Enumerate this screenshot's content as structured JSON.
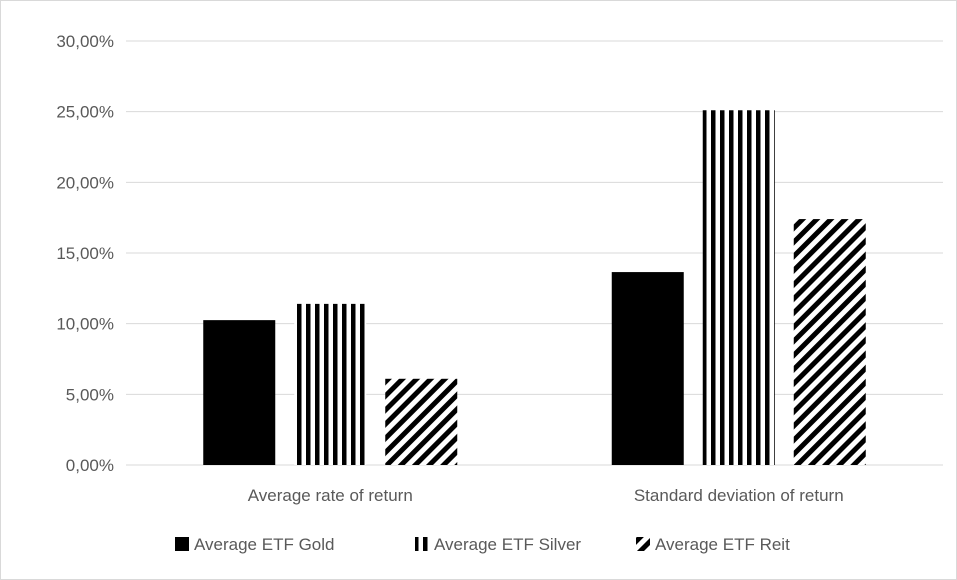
{
  "chart_data": {
    "type": "bar",
    "title": "",
    "xlabel": "",
    "ylabel": "",
    "categories": [
      "Average rate of return",
      "Standard deviation of return"
    ],
    "series": [
      {
        "name": "Average ETF Gold",
        "values": [
          10.25,
          13.65
        ],
        "pattern": "solid",
        "color": "#000000"
      },
      {
        "name": "Average ETF Silver",
        "values": [
          11.4,
          25.1
        ],
        "pattern": "vertical-stripes",
        "color": "#000000"
      },
      {
        "name": "Average ETF Reit",
        "values": [
          6.1,
          17.4
        ],
        "pattern": "diagonal-stripes",
        "color": "#000000"
      }
    ],
    "ylim": [
      0,
      30
    ],
    "yticks": [
      0,
      5,
      10,
      15,
      20,
      25,
      30
    ],
    "ytick_labels": [
      "0,00%",
      "5,00%",
      "10,00%",
      "15,00%",
      "20,00%",
      "25,00%",
      "30,00%"
    ],
    "grid": true,
    "legend_position": "bottom"
  },
  "colors": {
    "gridline": "#d9d9d9",
    "text": "#595959",
    "bar": "#000000",
    "background": "#ffffff"
  }
}
